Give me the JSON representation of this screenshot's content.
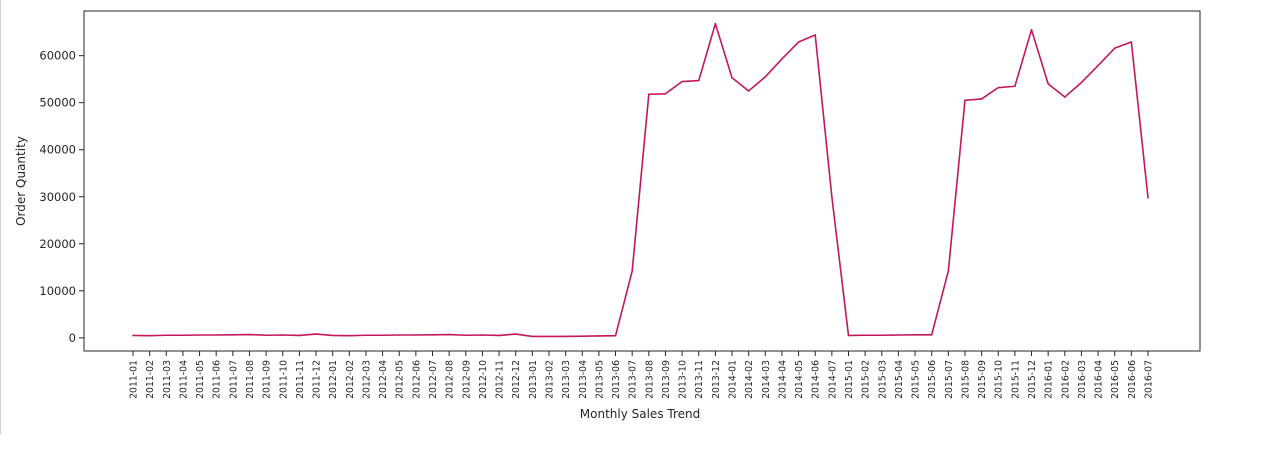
{
  "chart_data": {
    "type": "line",
    "xlabel": "Monthly Sales Trend",
    "ylabel": "Order Quantity",
    "ylim": [
      -2800,
      69500
    ],
    "yticks": [
      0,
      10000,
      20000,
      30000,
      40000,
      50000,
      60000
    ],
    "yticklabels": [
      "0",
      "10000",
      "20000",
      "30000",
      "40000",
      "50000",
      "60000"
    ],
    "grid": false,
    "legend": "none",
    "color": "#c2185b",
    "categories": [
      "2011-01",
      "2011-02",
      "2011-03",
      "2011-04",
      "2011-05",
      "2011-06",
      "2011-07",
      "2011-08",
      "2011-09",
      "2011-10",
      "2011-11",
      "2011-12",
      "2012-01",
      "2012-02",
      "2012-03",
      "2012-04",
      "2012-05",
      "2012-06",
      "2012-07",
      "2012-08",
      "2012-09",
      "2012-10",
      "2012-11",
      "2012-12",
      "2013-01",
      "2013-02",
      "2013-03",
      "2013-04",
      "2013-05",
      "2013-06",
      "2013-07",
      "2013-08",
      "2013-09",
      "2013-10",
      "2013-11",
      "2013-12",
      "2014-01",
      "2014-02",
      "2014-03",
      "2014-04",
      "2014-05",
      "2014-06",
      "2014-07",
      "2015-01",
      "2015-02",
      "2015-03",
      "2015-04",
      "2015-05",
      "2015-06",
      "2015-07",
      "2015-08",
      "2015-09",
      "2015-10",
      "2015-11",
      "2015-12",
      "2016-01",
      "2016-02",
      "2016-03",
      "2016-04",
      "2016-05",
      "2016-06",
      "2016-07"
    ],
    "values": [
      500,
      450,
      550,
      550,
      600,
      600,
      650,
      700,
      550,
      600,
      500,
      800,
      500,
      450,
      550,
      550,
      600,
      600,
      650,
      700,
      550,
      600,
      500,
      800,
      300,
      300,
      300,
      350,
      400,
      450,
      14200,
      51800,
      51900,
      54500,
      54700,
      66800,
      55300,
      52500,
      55500,
      59300,
      62900,
      64400,
      30000,
      500,
      550,
      550,
      600,
      650,
      650,
      14200,
      50500,
      50800,
      53200,
      53500,
      65500,
      54000,
      51200,
      54300,
      57900,
      61600,
      62900,
      29800
    ]
  }
}
